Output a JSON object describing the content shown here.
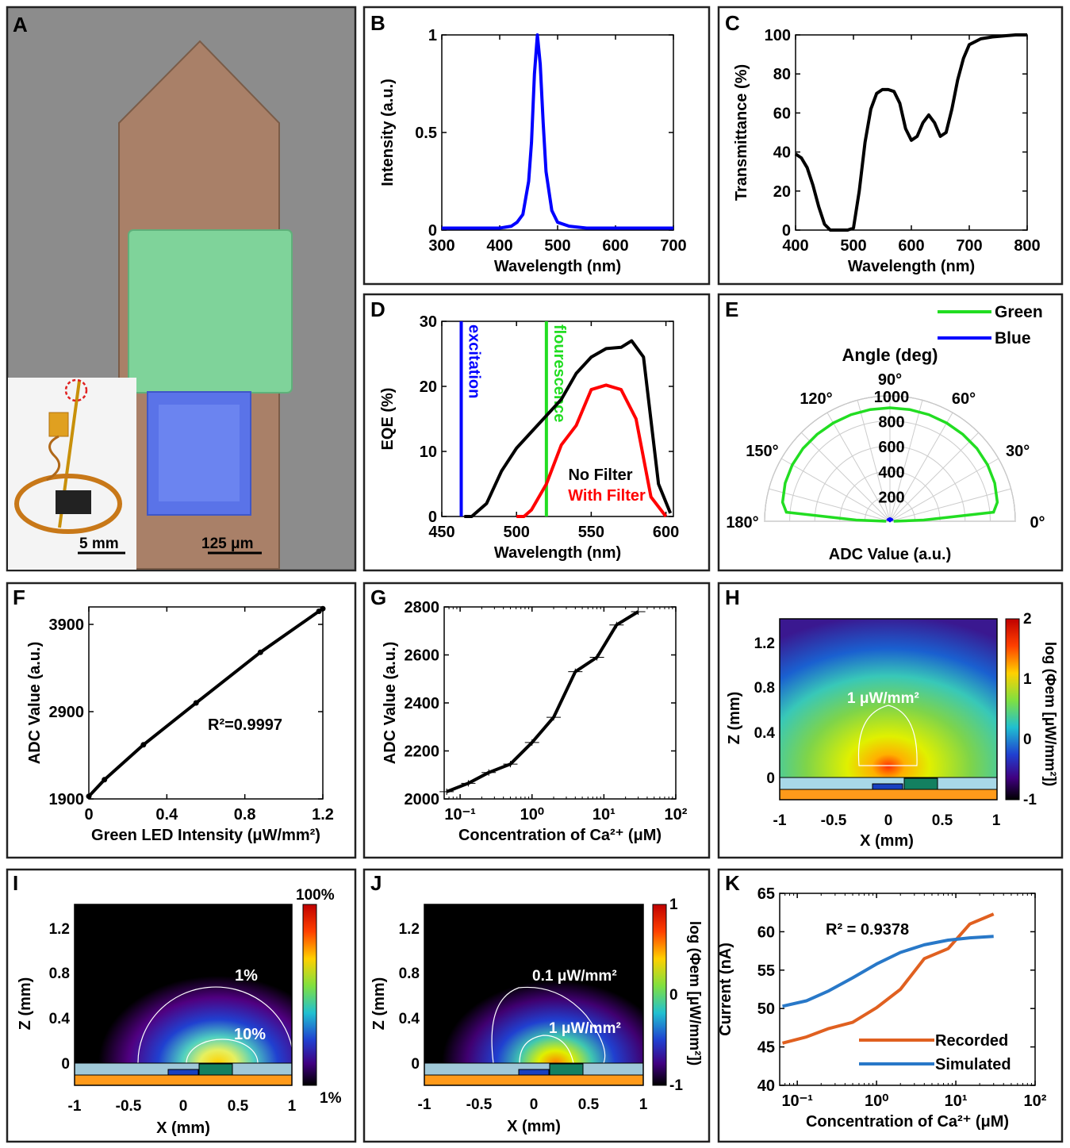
{
  "panels": {
    "A": {
      "label": "A",
      "inset_scale": "5 mm",
      "main_scale": "125 μm"
    },
    "H": {
      "label": "H",
      "contour_label": "1 μW/mm²",
      "colorbar": {
        "ticks": [
          "2",
          "1",
          "0",
          "-1"
        ],
        "label": "log (Φem [μW/mm²])"
      },
      "xlabel": "X (mm)",
      "ylabel": "Z (mm)",
      "xticks": [
        "-1",
        "-0.5",
        "0",
        "0.5",
        "1"
      ],
      "yticks": [
        "1.2",
        "0.8",
        "0.4",
        "0"
      ]
    },
    "I": {
      "label": "I",
      "contour_labels": [
        "1%",
        "10%"
      ],
      "colorbar": {
        "ticks": [
          "100%",
          "1%"
        ]
      },
      "xlabel": "X (mm)",
      "ylabel": "Z (mm)",
      "xticks": [
        "-1",
        "-0.5",
        "0",
        "0.5",
        "1"
      ],
      "yticks": [
        "1.2",
        "0.8",
        "0.4",
        "0"
      ]
    },
    "J": {
      "label": "J",
      "contour_labels": [
        "0.1 μW/mm²",
        "1 μW/mm²"
      ],
      "colorbar": {
        "ticks": [
          "1",
          "0",
          "-1"
        ],
        "label": "log (Φem [μW/mm²])"
      },
      "xlabel": "X (mm)",
      "ylabel": "Z (mm)",
      "xticks": [
        "-1",
        "-0.5",
        "0",
        "0.5",
        "1"
      ],
      "yticks": [
        "1.2",
        "0.8",
        "0.4",
        "0"
      ]
    }
  },
  "colors": {
    "blue": "#0000ff",
    "green": "#22dd22",
    "red": "#ff0000",
    "black": "#000000",
    "recorded": "#e06020",
    "simulated": "#2878c8"
  },
  "chart_data": [
    {
      "id": "B",
      "label": "B",
      "type": "line",
      "xlabel": "Wavelength (nm)",
      "ylabel": "Intensity (a.u.)",
      "xlim": [
        300,
        700
      ],
      "ylim": [
        0,
        1
      ],
      "xticks": [
        300,
        400,
        500,
        600,
        700
      ],
      "yticks": [
        0,
        0.5,
        1
      ],
      "ytick_labels": [
        "0",
        "0.5",
        "1"
      ],
      "series": [
        {
          "color": "#0000ff",
          "x": [
            300,
            350,
            400,
            420,
            430,
            440,
            450,
            455,
            460,
            465,
            470,
            475,
            480,
            490,
            500,
            520,
            550,
            600,
            650,
            700
          ],
          "y": [
            0.01,
            0.01,
            0.01,
            0.02,
            0.04,
            0.08,
            0.25,
            0.45,
            0.8,
            1.0,
            0.85,
            0.55,
            0.3,
            0.1,
            0.04,
            0.02,
            0.01,
            0.01,
            0.01,
            0.01
          ]
        }
      ]
    },
    {
      "id": "C",
      "label": "C",
      "type": "line",
      "xlabel": "Wavelength (nm)",
      "ylabel": "Transmittance (%)",
      "xlim": [
        400,
        800
      ],
      "ylim": [
        0,
        100
      ],
      "xticks": [
        400,
        500,
        600,
        700,
        800
      ],
      "yticks": [
        0,
        20,
        40,
        60,
        80,
        100
      ],
      "series": [
        {
          "color": "#000000",
          "x": [
            400,
            410,
            420,
            430,
            440,
            450,
            460,
            480,
            490,
            500,
            510,
            520,
            530,
            540,
            550,
            560,
            570,
            580,
            590,
            600,
            610,
            620,
            630,
            640,
            650,
            660,
            670,
            680,
            690,
            700,
            720,
            740,
            760,
            780,
            800
          ],
          "y": [
            39,
            37,
            32,
            23,
            12,
            3,
            0,
            0,
            0,
            1,
            20,
            45,
            62,
            70,
            72,
            72,
            71,
            65,
            52,
            46,
            48,
            55,
            59,
            55,
            48,
            50,
            62,
            77,
            88,
            95,
            98,
            99,
            99.5,
            100,
            100
          ]
        }
      ]
    },
    {
      "id": "D",
      "label": "D",
      "type": "line",
      "xlabel": "Wavelength (nm)",
      "ylabel": "EQE (%)",
      "xlim": [
        450,
        605
      ],
      "ylim": [
        0,
        30
      ],
      "xticks": [
        450,
        500,
        550,
        600
      ],
      "yticks": [
        0,
        10,
        20,
        30
      ],
      "vlines": [
        {
          "x": 463,
          "color": "#0000ff",
          "text": "excitation"
        },
        {
          "x": 520,
          "color": "#22dd22",
          "text": "flourescence"
        }
      ],
      "series": [
        {
          "name": "No Filter",
          "color": "#000000",
          "x": [
            465,
            470,
            480,
            490,
            500,
            510,
            520,
            530,
            540,
            550,
            560,
            570,
            577,
            585,
            595,
            603
          ],
          "y": [
            0,
            0,
            2,
            7,
            10.5,
            13,
            15.5,
            18,
            22,
            24.5,
            25.8,
            26,
            27,
            24.5,
            5,
            0.5
          ]
        },
        {
          "name": "With Filter",
          "color": "#ff0000",
          "x": [
            500,
            505,
            510,
            520,
            530,
            540,
            550,
            560,
            570,
            580,
            590,
            600
          ],
          "y": [
            0,
            0,
            1,
            5,
            11,
            14,
            19.5,
            20.2,
            19.5,
            15,
            3,
            0
          ]
        }
      ]
    },
    {
      "id": "E",
      "label": "E",
      "type": "polar",
      "title": "Angle (deg)",
      "xlabel": "ADC Value (a.u.)",
      "rlim": [
        0,
        1000
      ],
      "rticks": [
        200,
        400,
        600,
        800,
        1000
      ],
      "angle_ticks": [
        0,
        30,
        60,
        90,
        120,
        150,
        180
      ],
      "series": [
        {
          "name": "Green",
          "color": "#22dd22",
          "theta": [
            0,
            2,
            5,
            10,
            20,
            30,
            40,
            50,
            60,
            70,
            80,
            90,
            100,
            110,
            120,
            130,
            140,
            150,
            160,
            170,
            175,
            178,
            180
          ],
          "r": [
            30,
            270,
            830,
            870,
            890,
            900,
            905,
            905,
            905,
            905,
            905,
            905,
            905,
            905,
            905,
            905,
            905,
            900,
            890,
            870,
            830,
            270,
            30
          ]
        },
        {
          "name": "Blue",
          "color": "#0000ff",
          "theta": [
            0,
            45,
            90,
            135,
            180
          ],
          "r": [
            12,
            12,
            12,
            12,
            12
          ]
        }
      ]
    },
    {
      "id": "F",
      "label": "F",
      "type": "line",
      "xlabel": "Green LED Intensity (μW/mm²)",
      "ylabel": "ADC Value (a.u.)",
      "xlim": [
        0,
        1.2
      ],
      "ylim": [
        1900,
        4100
      ],
      "xticks": [
        0,
        0.4,
        0.8,
        1.2
      ],
      "yticks": [
        1900,
        2900,
        3900
      ],
      "annotation": "R²=0.9997",
      "series": [
        {
          "color": "#000000",
          "x": [
            0,
            0.08,
            0.28,
            0.55,
            0.88,
            1.18,
            1.2
          ],
          "y": [
            1930,
            2120,
            2520,
            3000,
            3580,
            4050,
            4080
          ],
          "markers": true
        }
      ]
    },
    {
      "id": "G",
      "label": "G",
      "type": "line",
      "xscale": "log",
      "xlabel": "Concentration of Ca²⁺ (μM)",
      "ylabel": "ADC Value (a.u.)",
      "xlim": [
        0.06,
        100
      ],
      "ylim": [
        2000,
        2800
      ],
      "xticks": [
        0.1,
        1,
        10,
        100
      ],
      "xtick_labels": [
        "10⁻¹",
        "10⁰",
        "10¹",
        "10²"
      ],
      "yticks": [
        2000,
        2200,
        2400,
        2600,
        2800
      ],
      "series": [
        {
          "color": "#000000",
          "x": [
            0.065,
            0.13,
            0.25,
            0.5,
            1,
            2,
            4,
            8,
            15,
            30
          ],
          "y": [
            2030,
            2065,
            2110,
            2145,
            2235,
            2340,
            2530,
            2590,
            2725,
            2780
          ],
          "errorbars": true
        }
      ]
    },
    {
      "id": "K",
      "label": "K",
      "type": "line",
      "xscale": "log",
      "xlabel": "Concentration of Ca²⁺ (μM)",
      "ylabel": "Current (nA)",
      "xlim": [
        0.06,
        100
      ],
      "ylim": [
        40,
        65
      ],
      "xticks": [
        0.1,
        1,
        10,
        100
      ],
      "xtick_labels": [
        "10⁻¹",
        "10⁰",
        "10¹",
        "10²"
      ],
      "yticks": [
        40,
        45,
        50,
        55,
        60,
        65
      ],
      "annotation": "R² = 0.9378",
      "series": [
        {
          "name": "Recorded",
          "color": "#e06020",
          "x": [
            0.065,
            0.13,
            0.25,
            0.5,
            1,
            2,
            4,
            8,
            15,
            30
          ],
          "y": [
            45.5,
            46.3,
            47.4,
            48.2,
            50.1,
            52.5,
            56.5,
            57.8,
            61,
            62.3
          ]
        },
        {
          "name": "Simulated",
          "color": "#2878c8",
          "x": [
            0.065,
            0.13,
            0.25,
            0.5,
            1,
            2,
            4,
            8,
            15,
            30
          ],
          "y": [
            50.3,
            51,
            52.3,
            54,
            55.8,
            57.3,
            58.3,
            58.9,
            59.2,
            59.4
          ]
        }
      ]
    }
  ]
}
